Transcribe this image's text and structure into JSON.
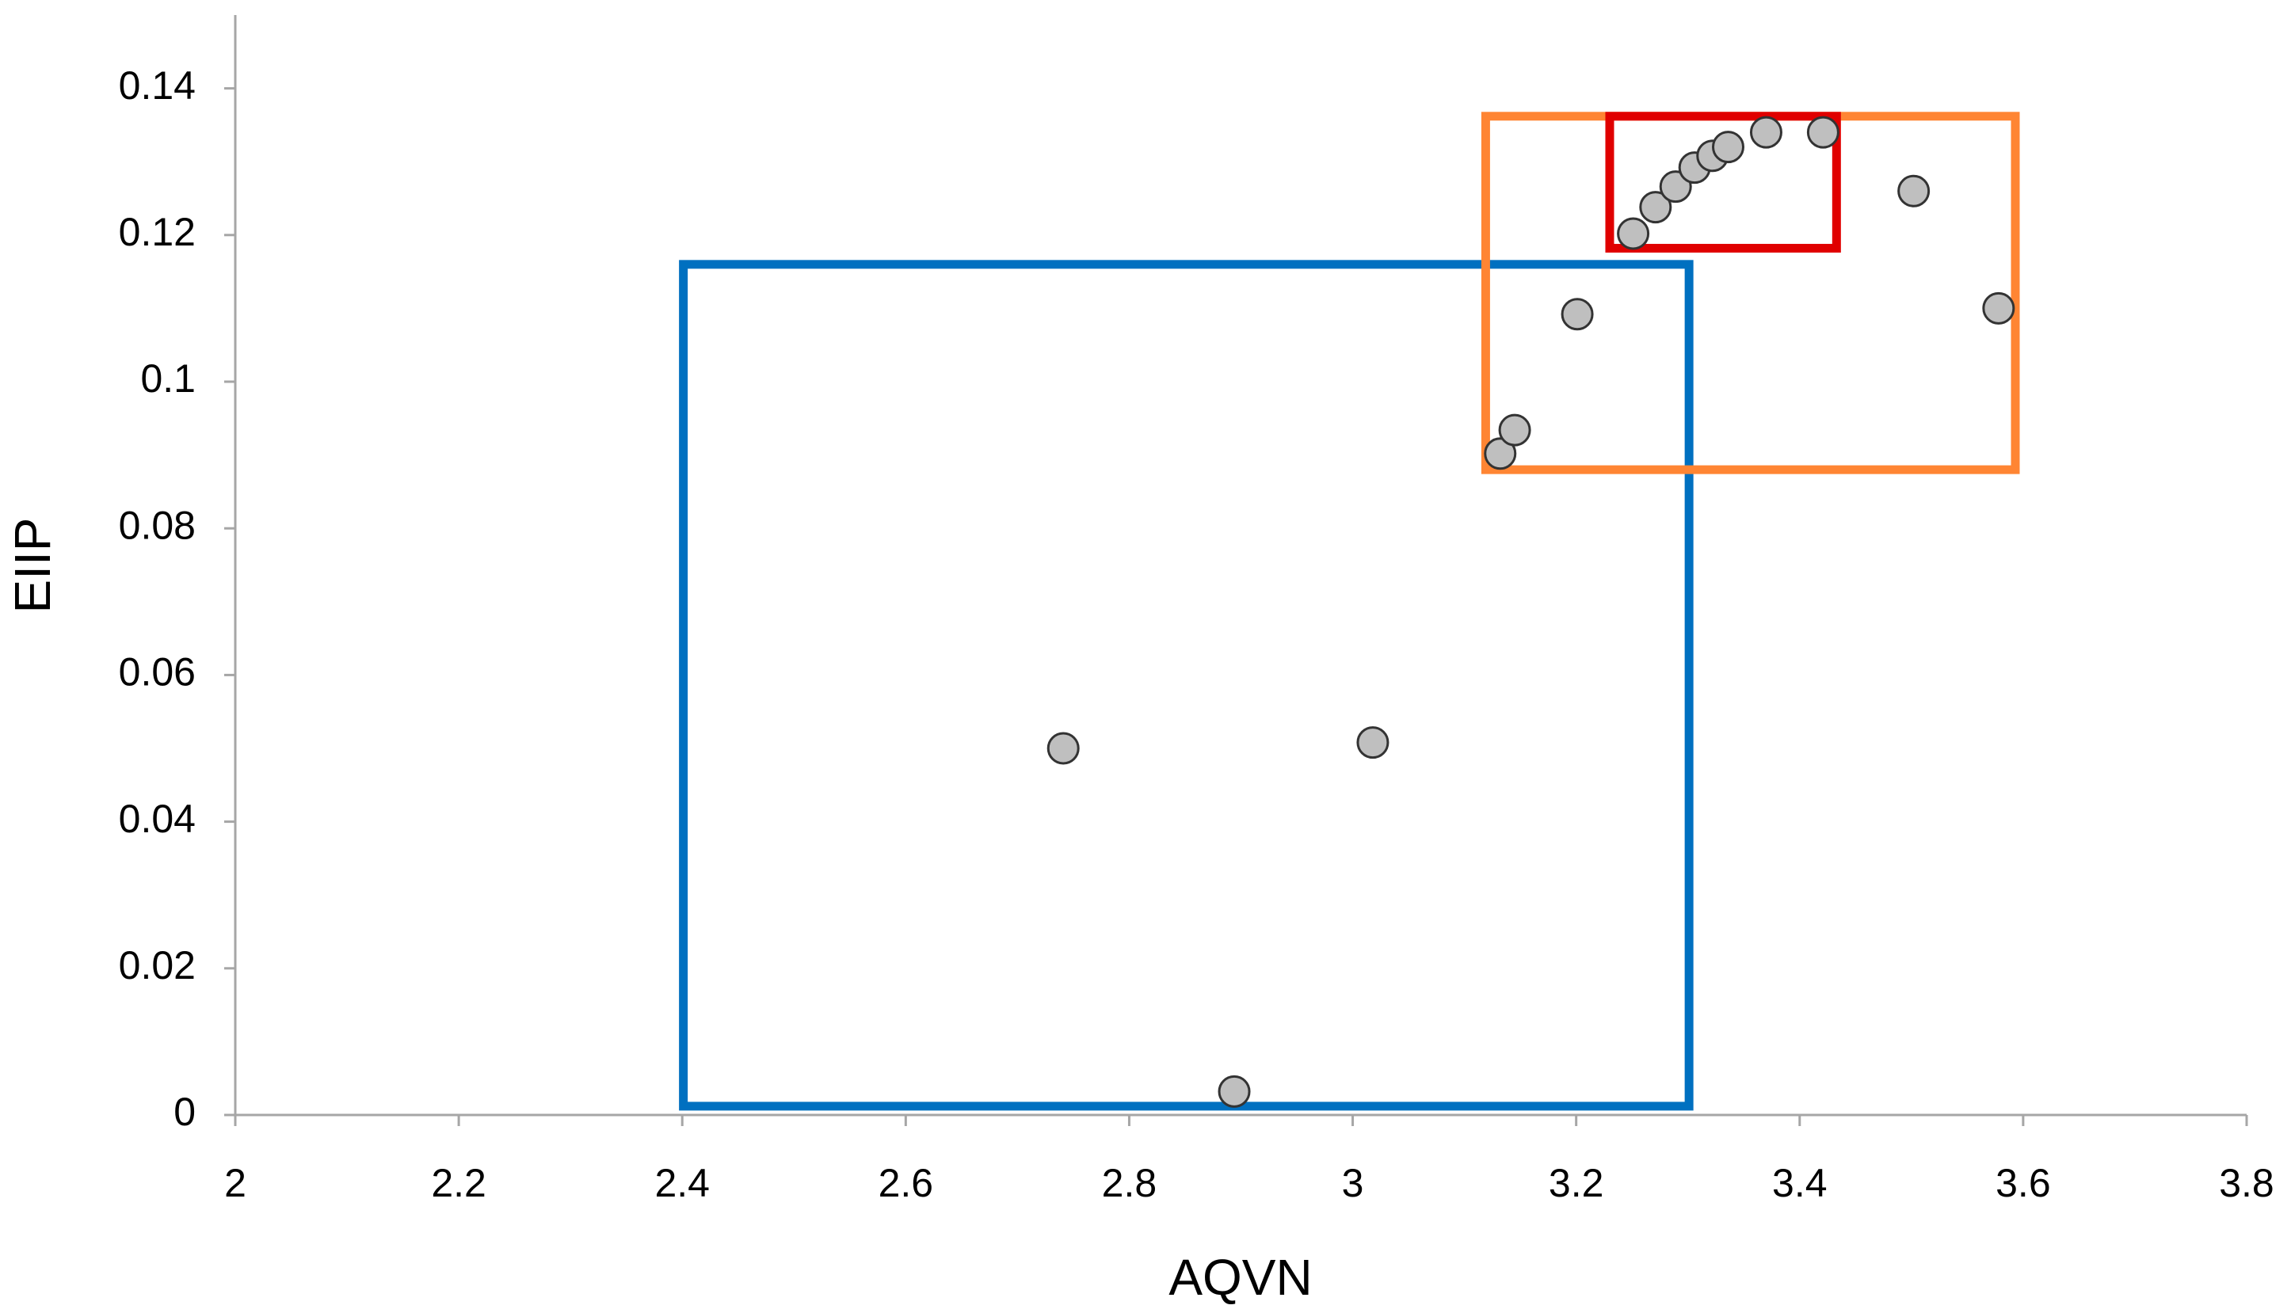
{
  "chart_data": {
    "type": "scatter",
    "x_label": "AQVN",
    "y_label": "EIIP",
    "x": [
      2.741,
      3.018,
      2.894,
      3.132,
      3.145,
      3.201,
      3.251,
      3.271,
      3.289,
      3.306,
      3.322,
      3.336,
      3.37,
      3.421,
      3.502,
      3.578
    ],
    "values": [
      0.05,
      0.0508,
      0.0032,
      0.0902,
      0.0934,
      0.1092,
      0.1202,
      0.1238,
      0.1266,
      0.1292,
      0.1308,
      0.132,
      0.134,
      0.134,
      0.126,
      0.11
    ],
    "color": "#bfbfbf",
    "edge_color": "#333333",
    "regions": [
      {
        "color": "#0070c0",
        "xlim": [
          2.401,
          3.301
        ],
        "ylim": [
          0.0012,
          0.116
        ]
      },
      {
        "color": "#ff8533",
        "xlim": [
          3.119,
          3.593
        ],
        "ylim": [
          0.088,
          0.1362
        ]
      },
      {
        "color": "#e00000",
        "xlim": [
          3.23,
          3.433
        ],
        "ylim": [
          0.1182,
          0.1362
        ]
      }
    ],
    "xlim": [
      2,
      3.8
    ],
    "xticks": [
      2,
      2.2,
      2.4,
      2.6,
      2.8,
      3,
      3.2,
      3.4,
      3.6,
      3.8
    ],
    "ylim": [
      0,
      0.15
    ],
    "yticks": [
      0,
      0.02,
      0.04,
      0.06,
      0.08,
      0.1,
      0.12,
      0.14
    ],
    "grid": false
  }
}
